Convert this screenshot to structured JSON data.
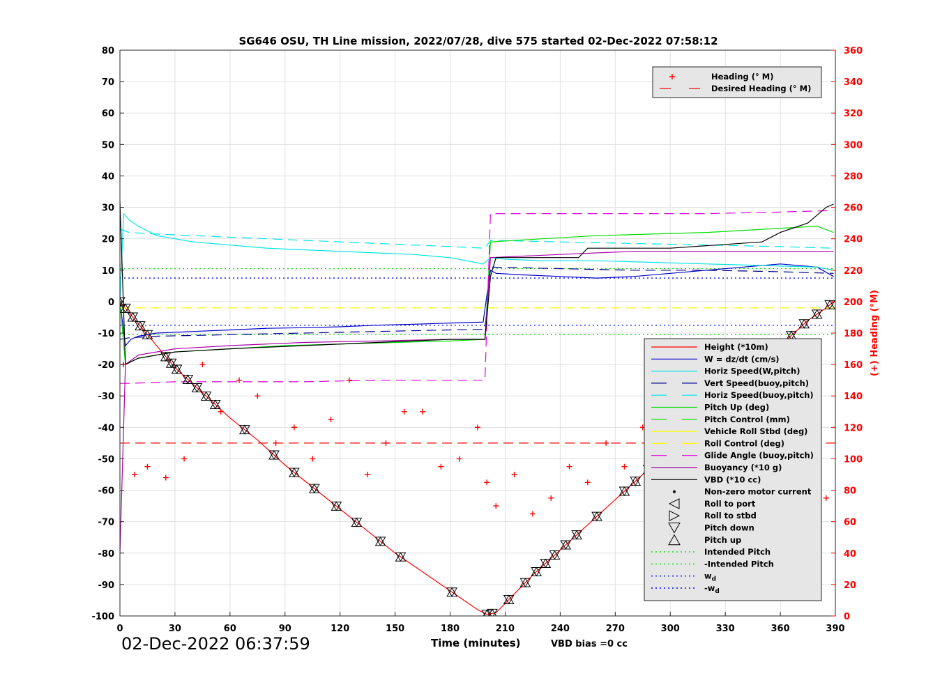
{
  "chart_data": {
    "type": "line",
    "title": "SG646 OSU, TH Line mission, 2022/07/28, dive 575 started 02-Dec-2022 07:58:12",
    "xlabel": "Time (minutes)",
    "ylabel_left": "",
    "ylabel_right": "(+) Heading (°M)",
    "xlim": [
      0,
      390
    ],
    "ylim_left": [
      -100,
      80
    ],
    "ylim_right": [
      0,
      360
    ],
    "xticks": [
      0,
      30,
      60,
      90,
      120,
      150,
      180,
      210,
      240,
      270,
      300,
      330,
      360,
      390
    ],
    "yticks_left": [
      80,
      70,
      60,
      50,
      40,
      30,
      20,
      10,
      0,
      -10,
      -20,
      -30,
      -40,
      -50,
      -60,
      -70,
      -80,
      -90,
      -100
    ],
    "yticks_right": [
      360,
      340,
      320,
      300,
      280,
      260,
      240,
      220,
      200,
      180,
      160,
      140,
      120,
      100,
      80,
      60,
      40,
      20,
      0
    ],
    "grid": true,
    "legends": {
      "heading": {
        "placement": "top-right",
        "entries": [
          "Heading (° M)",
          "Desired Heading (° M)"
        ]
      },
      "main": {
        "placement": "lower-right",
        "entries": [
          {
            "label": "Height (*10m)",
            "color": "#ff0000",
            "style": "solid"
          },
          {
            "label": "W = dz/dt (cm/s)",
            "color": "#0000cc",
            "style": "solid"
          },
          {
            "label": "Horiz Speed(W,pitch)",
            "color": "#00e5e5",
            "style": "solid"
          },
          {
            "label": "Vert Speed(buoy,pitch)",
            "color": "#00008b",
            "style": "dashed"
          },
          {
            "label": "Horiz Speed(buoy,pitch)",
            "color": "#00e5e5",
            "style": "dashed"
          },
          {
            "label": "Pitch Up (deg)",
            "color": "#00dd00",
            "style": "solid"
          },
          {
            "label": "Pitch Control (mm)",
            "color": "#00dd00",
            "style": "dashed"
          },
          {
            "label": "Vehicle Roll Stbd (deg)",
            "color": "#ffff00",
            "style": "solid"
          },
          {
            "label": "Roll Control (deg)",
            "color": "#ffff00",
            "style": "dashed"
          },
          {
            "label": "Glide Angle (buoy,pitch)",
            "color": "#dd00dd",
            "style": "dashed"
          },
          {
            "label": "Buoyancy (*10 g)",
            "color": "#aa00aa",
            "style": "solid"
          },
          {
            "label": "VBD (*10 cc)",
            "color": "#000000",
            "style": "solid"
          },
          {
            "label": "Non-zero motor current",
            "color": "#000000",
            "style": "dot"
          },
          {
            "label": "Roll to port",
            "color": "#000000",
            "style": "marker-left"
          },
          {
            "label": "Roll to stbd",
            "color": "#000000",
            "style": "marker-right"
          },
          {
            "label": "Pitch down",
            "color": "#000000",
            "style": "marker-down"
          },
          {
            "label": "Pitch up",
            "color": "#000000",
            "style": "marker-up"
          },
          {
            "label": "Intended Pitch",
            "color": "#00dd00",
            "style": "dotted"
          },
          {
            "label": "-Intended Pitch",
            "color": "#00dd00",
            "style": "dotted"
          },
          {
            "label": "w",
            "sub": "d",
            "color": "#0000ff",
            "style": "dotted"
          },
          {
            "label": "-w",
            "sub": "d",
            "color": "#0000ff",
            "style": "dotted"
          }
        ]
      }
    },
    "series": [
      {
        "name": "Height (*10m)",
        "color": "#ff0000",
        "x": [
          0,
          10,
          20,
          30,
          45,
          60,
          75,
          90,
          105,
          120,
          135,
          150,
          165,
          180,
          190,
          195,
          200,
          205,
          215,
          225,
          240,
          255,
          270,
          285,
          300,
          315,
          330,
          345,
          360,
          375,
          385,
          389
        ],
        "y": [
          0,
          -7,
          -14,
          -21,
          -29,
          -37,
          -44,
          -52,
          -59,
          -66,
          -73,
          -80,
          -86,
          -92,
          -96,
          -98,
          -99.5,
          -99,
          -93,
          -87,
          -79,
          -71,
          -63,
          -55,
          -47,
          -39,
          -31,
          -23,
          -14,
          -6,
          -2,
          0
        ]
      },
      {
        "name": "W = dz/dt (cm/s)",
        "color": "#0000cc",
        "x": [
          0,
          3,
          6,
          10,
          20,
          40,
          60,
          80,
          100,
          120,
          140,
          160,
          180,
          198,
          200,
          202,
          205,
          220,
          240,
          260,
          280,
          300,
          320,
          340,
          360,
          380,
          389
        ],
        "y": [
          0,
          -14,
          -12,
          -11,
          -10,
          -9.5,
          -9,
          -8.5,
          -8.3,
          -8,
          -7.5,
          -7.2,
          -6.8,
          -6.5,
          2,
          10,
          9,
          8.5,
          8,
          7.5,
          8,
          9,
          10,
          11,
          12,
          11,
          8
        ]
      },
      {
        "name": "Horiz Speed(W,pitch)",
        "color": "#00e5e5",
        "x": [
          0,
          2,
          5,
          10,
          20,
          30,
          40,
          60,
          80,
          100,
          120,
          140,
          160,
          180,
          198,
          202,
          210,
          230,
          260,
          290,
          320,
          350,
          380,
          389
        ],
        "y": [
          0,
          28,
          26,
          24,
          21,
          20,
          19,
          18,
          17,
          16.5,
          16,
          15.5,
          15,
          14,
          12,
          14,
          13.5,
          13,
          13,
          12.5,
          12,
          11.5,
          11,
          10
        ]
      },
      {
        "name": "Vert Speed(buoy,pitch)",
        "color": "#00008b",
        "x": [
          0,
          5,
          20,
          60,
          100,
          140,
          180,
          199,
          202,
          240,
          280,
          320,
          360,
          389
        ],
        "y": [
          -12,
          -11.5,
          -11,
          -10.5,
          -10,
          -9.5,
          -9,
          -8.8,
          11,
          10.5,
          10,
          10,
          9.5,
          9
        ]
      },
      {
        "name": "Horiz Speed(buoy,pitch)",
        "color": "#00e5e5",
        "x": [
          0,
          5,
          20,
          60,
          100,
          140,
          180,
          199,
          202,
          240,
          280,
          320,
          360,
          389
        ],
        "y": [
          23,
          22,
          21.5,
          20.5,
          19.5,
          18.5,
          17.5,
          17,
          19.5,
          19,
          18.5,
          18,
          17.5,
          17
        ]
      },
      {
        "name": "Pitch Up (deg)",
        "color": "#00dd00",
        "x": [
          0,
          3,
          10,
          30,
          60,
          90,
          120,
          150,
          180,
          199,
          202,
          230,
          260,
          290,
          320,
          350,
          380,
          389
        ],
        "y": [
          0,
          -20,
          -18,
          -16,
          -15,
          -14,
          -13.5,
          -13,
          -12.5,
          -12,
          19,
          20,
          21,
          21.5,
          22,
          23,
          24,
          22
        ]
      },
      {
        "name": "Roll Control (deg)",
        "color": "#ffff00",
        "x": [
          0,
          5,
          30,
          60,
          90,
          120,
          150,
          180,
          199,
          202,
          230,
          260,
          290,
          320,
          350,
          389
        ],
        "y": [
          -2,
          -2,
          -2,
          -2,
          -2,
          -2,
          -2,
          -2,
          -2,
          -2,
          -2,
          -2,
          -2,
          -2,
          -2,
          -2
        ]
      },
      {
        "name": "Glide Angle (buoy,pitch)",
        "color": "#dd00dd",
        "x": [
          0,
          5,
          30,
          60,
          100,
          140,
          180,
          199,
          202,
          240,
          280,
          320,
          360,
          389
        ],
        "y": [
          -26,
          -26,
          -25.5,
          -25.5,
          -25.5,
          -25,
          -25,
          -25,
          28,
          28,
          28,
          28,
          28.5,
          29
        ]
      },
      {
        "name": "Buoyancy (*10 g)",
        "color": "#aa00aa",
        "x": [
          0,
          3,
          10,
          30,
          60,
          100,
          140,
          180,
          199,
          202,
          240,
          280,
          320,
          360,
          389
        ],
        "y": [
          -80,
          -20,
          -17,
          -15,
          -14,
          -13,
          -12.5,
          -12,
          -12,
          14,
          15,
          16,
          16,
          16,
          16
        ]
      },
      {
        "name": "VBD (*10 cc)",
        "color": "#000000",
        "x": [
          0,
          3,
          10,
          30,
          60,
          100,
          140,
          180,
          199,
          202,
          205,
          250,
          255,
          300,
          350,
          360,
          375,
          385,
          389
        ],
        "y": [
          32,
          -20,
          -18,
          -16,
          -15,
          -14,
          -13,
          -12,
          -12,
          8,
          14,
          14,
          17,
          17,
          19,
          22,
          25,
          30,
          31
        ]
      },
      {
        "name": "Heading (° M)",
        "color": "#ff0000",
        "axis": "right",
        "x": [
          2,
          8,
          15,
          25,
          35,
          45,
          55,
          65,
          75,
          85,
          95,
          105,
          115,
          125,
          135,
          145,
          155,
          165,
          175,
          185,
          195,
          200,
          205,
          215,
          225,
          235,
          245,
          255,
          265,
          275,
          285,
          295,
          305,
          315,
          325,
          335,
          345,
          355,
          365,
          375,
          385
        ],
        "y": [
          160,
          90,
          95,
          88,
          100,
          160,
          130,
          150,
          140,
          110,
          120,
          100,
          125,
          150,
          90,
          110,
          130,
          130,
          95,
          100,
          120,
          85,
          70,
          90,
          65,
          75,
          95,
          85,
          110,
          95,
          120,
          105,
          70,
          110,
          140,
          100,
          120,
          95,
          110,
          130,
          75
        ]
      },
      {
        "name": "Desired Heading (° M)",
        "color": "#ff0000",
        "axis": "right",
        "x": [
          0,
          390
        ],
        "y": [
          110,
          110
        ]
      }
    ],
    "reference_lines": [
      {
        "name": "Intended Pitch",
        "y": 10.5,
        "color": "#00dd00"
      },
      {
        "name": "-Intended Pitch",
        "y": -10.5,
        "color": "#00dd00"
      },
      {
        "name": "w_d",
        "y": 7.5,
        "color": "#0000ff"
      },
      {
        "name": "-w_d",
        "y": -7.5,
        "color": "#0000ff"
      }
    ],
    "pitch_events_x": [
      0,
      3,
      7,
      11,
      15,
      25,
      28,
      31,
      37,
      42,
      47,
      52,
      68,
      84,
      95,
      106,
      118,
      129,
      142,
      153,
      181,
      200,
      203,
      212,
      221,
      227,
      232,
      237,
      243,
      249,
      260,
      275,
      281,
      288,
      295,
      302,
      309,
      316,
      323,
      330,
      337,
      344,
      351,
      358,
      366,
      373,
      380,
      387
    ]
  },
  "footer": {
    "timestamp": "02-Dec-2022 06:37:59",
    "vbd_bias": "VBD bias =0 cc"
  }
}
